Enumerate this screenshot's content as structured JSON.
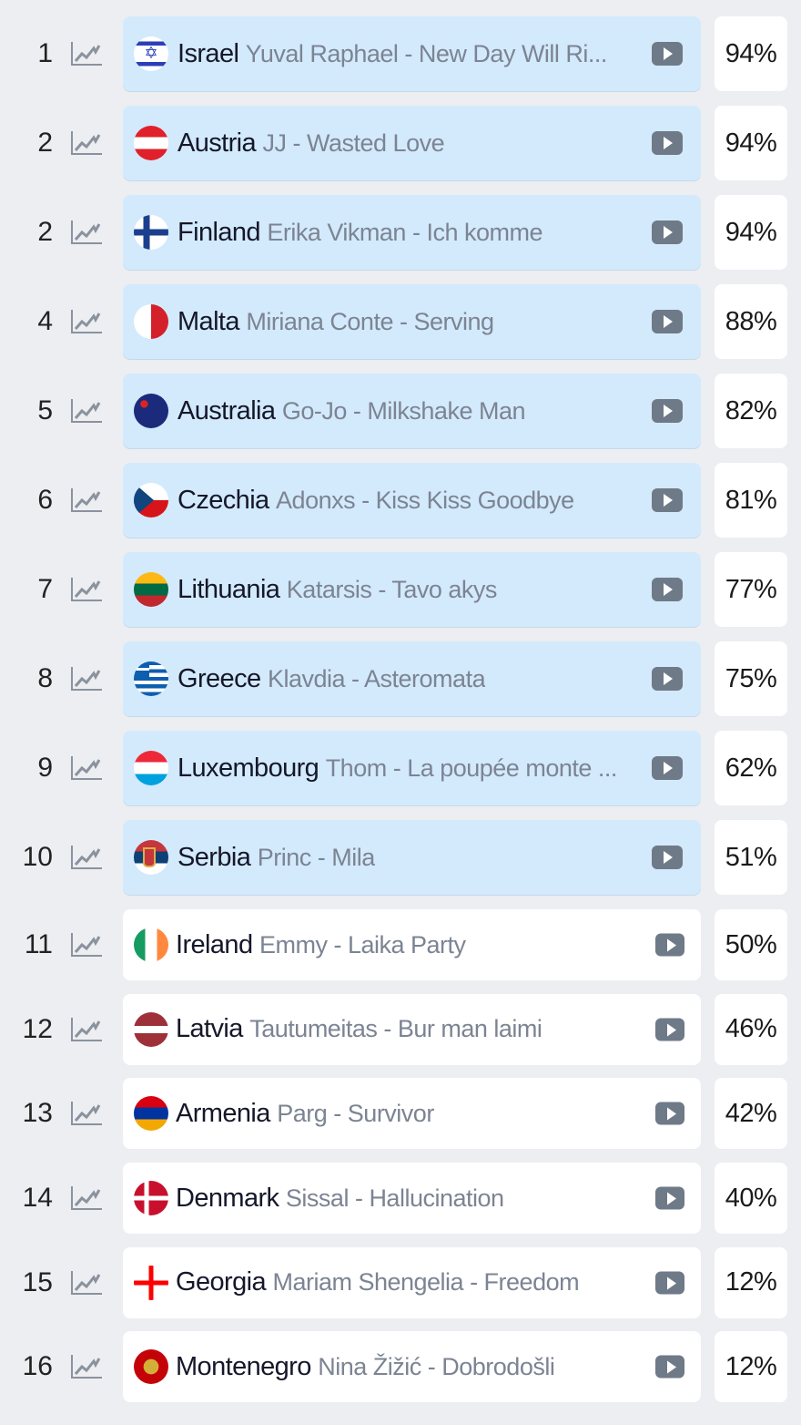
{
  "icons": {
    "trend": "trend-chart-icon",
    "play": "video-play-icon"
  },
  "colors": {
    "highlight_card": "#d3eafc",
    "card": "#ffffff",
    "background": "#eceef1",
    "song_text": "#7c8493",
    "play_button": "#6f7a88"
  },
  "rows": [
    {
      "rank": "1",
      "flag": "il",
      "country": "Israel",
      "song": "Yuval Raphael - New Day Will Ri...",
      "percent": "94%",
      "highlighted": true
    },
    {
      "rank": "2",
      "flag": "at",
      "country": "Austria",
      "song": "JJ - Wasted Love",
      "percent": "94%",
      "highlighted": true
    },
    {
      "rank": "2",
      "flag": "fi",
      "country": "Finland",
      "song": "Erika Vikman - Ich komme",
      "percent": "94%",
      "highlighted": true
    },
    {
      "rank": "4",
      "flag": "mt",
      "country": "Malta",
      "song": "Miriana Conte - Serving",
      "percent": "88%",
      "highlighted": true
    },
    {
      "rank": "5",
      "flag": "au",
      "country": "Australia",
      "song": "Go-Jo - Milkshake Man",
      "percent": "82%",
      "highlighted": true
    },
    {
      "rank": "6",
      "flag": "cz",
      "country": "Czechia",
      "song": "Adonxs - Kiss Kiss Goodbye",
      "percent": "81%",
      "highlighted": true
    },
    {
      "rank": "7",
      "flag": "lt",
      "country": "Lithuania",
      "song": "Katarsis - Tavo akys",
      "percent": "77%",
      "highlighted": true
    },
    {
      "rank": "8",
      "flag": "gr",
      "country": "Greece",
      "song": "Klavdia - Asteromata",
      "percent": "75%",
      "highlighted": true
    },
    {
      "rank": "9",
      "flag": "lu",
      "country": "Luxembourg",
      "song": "Thom - La poupée monte ...",
      "percent": "62%",
      "highlighted": true
    },
    {
      "rank": "10",
      "flag": "rs",
      "country": "Serbia",
      "song": "Princ - Mila",
      "percent": "51%",
      "highlighted": true
    },
    {
      "rank": "11",
      "flag": "ie",
      "country": "Ireland",
      "song": "Emmy - Laika Party",
      "percent": "50%",
      "highlighted": false
    },
    {
      "rank": "12",
      "flag": "lv",
      "country": "Latvia",
      "song": "Tautumeitas - Bur man laimi",
      "percent": "46%",
      "highlighted": false
    },
    {
      "rank": "13",
      "flag": "am",
      "country": "Armenia",
      "song": "Parg - Survivor",
      "percent": "42%",
      "highlighted": false
    },
    {
      "rank": "14",
      "flag": "dk",
      "country": "Denmark",
      "song": "Sissal - Hallucination",
      "percent": "40%",
      "highlighted": false
    },
    {
      "rank": "15",
      "flag": "ge",
      "country": "Georgia",
      "song": "Mariam Shengelia - Freedom",
      "percent": "12%",
      "highlighted": false
    },
    {
      "rank": "16",
      "flag": "me",
      "country": "Montenegro",
      "song": "Nina Žižić - Dobrodošli",
      "percent": "12%",
      "highlighted": false
    }
  ]
}
